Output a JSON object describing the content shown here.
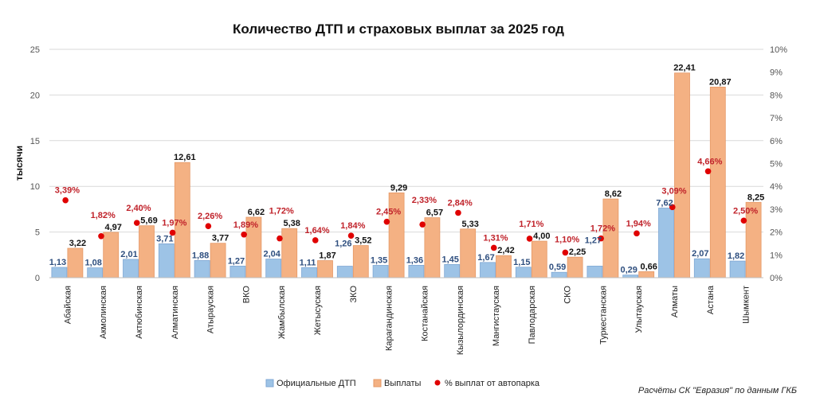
{
  "chart_data": {
    "type": "bar",
    "title": "Количество ДТП и страховых выплат за 2025 год",
    "ylabel": "тысячи",
    "ylim": [
      0,
      25
    ],
    "y_ticks": [
      0,
      5,
      10,
      15,
      20,
      25
    ],
    "y2lim": [
      0,
      10
    ],
    "y2_ticks": [
      "0%",
      "1%",
      "2%",
      "3%",
      "4%",
      "5%",
      "6%",
      "7%",
      "8%",
      "9%",
      "10%"
    ],
    "grid": true,
    "legend_placement": "bottom",
    "categories": [
      "Абайская",
      "Акмолинская",
      "Актюбинская",
      "Алматинская",
      "Атырауская",
      "ВКО",
      "Жамбылская",
      "Жетысуская",
      "ЗКО",
      "Карагандинская",
      "Костанайская",
      "Кызылординская",
      "Мангистауская",
      "Павлодарская",
      "СКО",
      "Туркестанская",
      "Улытауская",
      "Алматы",
      "Астана",
      "Шымкент"
    ],
    "series": [
      {
        "name": "Официальные ДТП",
        "type": "bar",
        "axis": "left",
        "color": "#9dc3e6",
        "values": [
          1.13,
          1.08,
          2.01,
          3.71,
          1.88,
          1.27,
          2.04,
          1.11,
          1.26,
          1.35,
          1.36,
          1.45,
          1.67,
          1.15,
          0.59,
          1.27,
          0.29,
          7.62,
          2.07,
          1.82
        ],
        "labels": [
          "1,13",
          "1,08",
          "2,01",
          "3,71",
          "1,88",
          "1,27",
          "2,04",
          "1,11",
          "1,26",
          "1,35",
          "1,36",
          "1,45",
          "1,67",
          "1,15",
          "0,59",
          "1,27",
          "0,29",
          "7,62",
          "2,07",
          "1,82"
        ]
      },
      {
        "name": "Выплаты",
        "type": "bar",
        "axis": "left",
        "color": "#f4b183",
        "values": [
          3.22,
          4.97,
          5.69,
          12.61,
          3.77,
          6.62,
          5.38,
          1.87,
          3.52,
          9.29,
          6.57,
          5.33,
          2.42,
          4.0,
          2.25,
          8.62,
          0.66,
          22.41,
          20.87,
          8.25
        ],
        "labels": [
          "3,22",
          "4,97",
          "5,69",
          "12,61",
          "3,77",
          "6,62",
          "5,38",
          "1,87",
          "3,52",
          "9,29",
          "6,57",
          "5,33",
          "2,42",
          "4,00",
          "2,25",
          "8,62",
          "0,66",
          "22,41",
          "20,87",
          "8,25"
        ]
      },
      {
        "name": "% выплат от автопарка",
        "type": "scatter",
        "axis": "right",
        "color": "#e00000",
        "values": [
          3.39,
          1.82,
          2.4,
          1.97,
          2.26,
          1.89,
          1.72,
          1.64,
          1.84,
          2.45,
          2.33,
          2.84,
          1.31,
          1.71,
          1.1,
          1.72,
          1.94,
          3.09,
          4.66,
          2.5
        ],
        "labels": [
          "3,39%",
          "1,82%",
          "2,40%",
          "1,97%",
          "2,26%",
          "1,89%",
          "1,72%",
          "1,64%",
          "1,84%",
          "2,45%",
          "2,33%",
          "2,84%",
          "1,31%",
          "1,71%",
          "1,10%",
          "1,72%",
          "1,94%",
          "3,09%",
          "4,66%",
          "2,50%"
        ]
      }
    ],
    "source_note": "Расчёты СК \"Евразия\" по данным ГКБ"
  }
}
